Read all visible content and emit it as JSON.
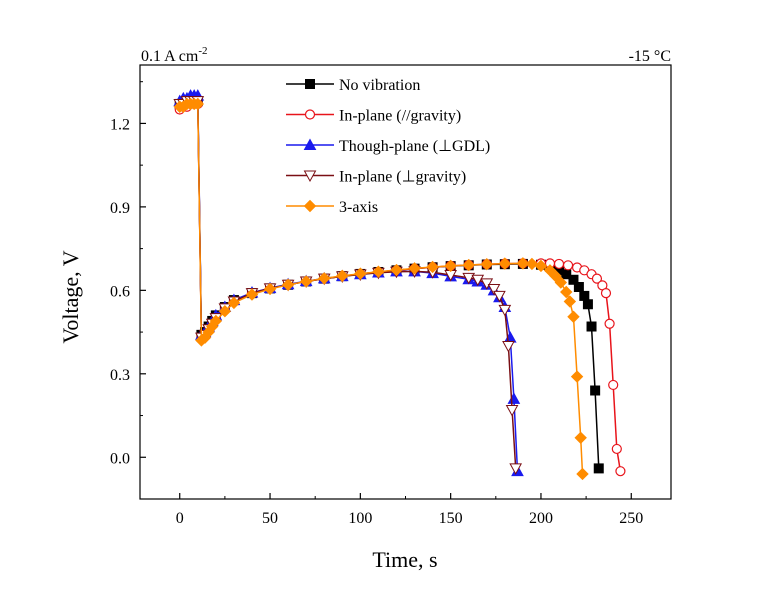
{
  "chart_data": {
    "type": "line",
    "title": "",
    "annotations": {
      "current_density": "0.1 A cm",
      "current_density_exp": "-2",
      "temperature": "-15 °C"
    },
    "xlabel": "Time, s",
    "ylabel": "Voltage, V",
    "xlim": [
      -22,
      272
    ],
    "ylim": [
      -0.15,
      1.41
    ],
    "xticks": [
      0,
      50,
      100,
      150,
      200,
      250
    ],
    "xtick_labels": [
      "0",
      "50",
      "100",
      "150",
      "200",
      "250"
    ],
    "yticks": [
      0.0,
      0.3,
      0.6,
      0.9,
      1.2
    ],
    "ytick_labels": [
      "0.0",
      "0.3",
      "0.6",
      "0.9",
      "1.2"
    ],
    "legend_position": "top-center",
    "series": [
      {
        "name": "No vibration",
        "color": "#000000",
        "marker": "square-filled",
        "points": [
          [
            0,
            1.27
          ],
          [
            2,
            1.27
          ],
          [
            4,
            1.28
          ],
          [
            6,
            1.28
          ],
          [
            8,
            1.28
          ],
          [
            10,
            1.28
          ],
          [
            12,
            0.44
          ],
          [
            14,
            0.45
          ],
          [
            16,
            0.47
          ],
          [
            18,
            0.49
          ],
          [
            20,
            0.51
          ],
          [
            25,
            0.54
          ],
          [
            30,
            0.565
          ],
          [
            40,
            0.59
          ],
          [
            50,
            0.607
          ],
          [
            60,
            0.62
          ],
          [
            70,
            0.632
          ],
          [
            80,
            0.642
          ],
          [
            90,
            0.651
          ],
          [
            100,
            0.659
          ],
          [
            110,
            0.666
          ],
          [
            120,
            0.672
          ],
          [
            130,
            0.678
          ],
          [
            140,
            0.683
          ],
          [
            150,
            0.687
          ],
          [
            160,
            0.69
          ],
          [
            170,
            0.693
          ],
          [
            180,
            0.694
          ],
          [
            190,
            0.695
          ],
          [
            200,
            0.692
          ],
          [
            205,
            0.685
          ],
          [
            210,
            0.672
          ],
          [
            214,
            0.658
          ],
          [
            218,
            0.638
          ],
          [
            221,
            0.612
          ],
          [
            224,
            0.58
          ],
          [
            226,
            0.55
          ],
          [
            228,
            0.47
          ],
          [
            230,
            0.24
          ],
          [
            232,
            -0.04
          ]
        ]
      },
      {
        "name": "In-plane (//gravity)",
        "color": "#e8141b",
        "marker": "circle-open",
        "points": [
          [
            0,
            1.25
          ],
          [
            2,
            1.26
          ],
          [
            4,
            1.26
          ],
          [
            6,
            1.27
          ],
          [
            8,
            1.27
          ],
          [
            10,
            1.27
          ],
          [
            12,
            0.43
          ],
          [
            14,
            0.44
          ],
          [
            16,
            0.46
          ],
          [
            18,
            0.48
          ],
          [
            20,
            0.5
          ],
          [
            25,
            0.53
          ],
          [
            30,
            0.56
          ],
          [
            40,
            0.59
          ],
          [
            50,
            0.607
          ],
          [
            60,
            0.62
          ],
          [
            70,
            0.632
          ],
          [
            80,
            0.642
          ],
          [
            90,
            0.651
          ],
          [
            100,
            0.659
          ],
          [
            110,
            0.666
          ],
          [
            120,
            0.672
          ],
          [
            130,
            0.678
          ],
          [
            140,
            0.683
          ],
          [
            150,
            0.688
          ],
          [
            160,
            0.691
          ],
          [
            170,
            0.694
          ],
          [
            180,
            0.696
          ],
          [
            190,
            0.697
          ],
          [
            200,
            0.697
          ],
          [
            205,
            0.697
          ],
          [
            210,
            0.695
          ],
          [
            215,
            0.69
          ],
          [
            220,
            0.682
          ],
          [
            224,
            0.672
          ],
          [
            228,
            0.658
          ],
          [
            231,
            0.642
          ],
          [
            234,
            0.618
          ],
          [
            236,
            0.59
          ],
          [
            238,
            0.48
          ],
          [
            240,
            0.26
          ],
          [
            242,
            0.03
          ],
          [
            244,
            -0.05
          ]
        ]
      },
      {
        "name": "Though-plane (⊥GDL)",
        "color": "#1a1aee",
        "marker": "triangle-up-filled",
        "points": [
          [
            0,
            1.28
          ],
          [
            2,
            1.29
          ],
          [
            4,
            1.29
          ],
          [
            6,
            1.3
          ],
          [
            8,
            1.3
          ],
          [
            10,
            1.3
          ],
          [
            12,
            0.44
          ],
          [
            14,
            0.45
          ],
          [
            16,
            0.47
          ],
          [
            18,
            0.49
          ],
          [
            20,
            0.51
          ],
          [
            25,
            0.54
          ],
          [
            30,
            0.565
          ],
          [
            40,
            0.592
          ],
          [
            50,
            0.608
          ],
          [
            60,
            0.622
          ],
          [
            70,
            0.633
          ],
          [
            80,
            0.643
          ],
          [
            90,
            0.651
          ],
          [
            100,
            0.658
          ],
          [
            110,
            0.664
          ],
          [
            120,
            0.668
          ],
          [
            130,
            0.668
          ],
          [
            140,
            0.662
          ],
          [
            150,
            0.65
          ],
          [
            160,
            0.64
          ],
          [
            165,
            0.632
          ],
          [
            170,
            0.62
          ],
          [
            174,
            0.6
          ],
          [
            177,
            0.575
          ],
          [
            180,
            0.54
          ],
          [
            183,
            0.43
          ],
          [
            185,
            0.21
          ],
          [
            187,
            -0.05
          ]
        ]
      },
      {
        "name": "In-plane (⊥gravity)",
        "color": "#7a0f14",
        "marker": "triangle-down-open",
        "points": [
          [
            0,
            1.27
          ],
          [
            2,
            1.27
          ],
          [
            4,
            1.28
          ],
          [
            6,
            1.28
          ],
          [
            8,
            1.28
          ],
          [
            10,
            1.28
          ],
          [
            12,
            0.43
          ],
          [
            14,
            0.44
          ],
          [
            16,
            0.46
          ],
          [
            18,
            0.48
          ],
          [
            20,
            0.5
          ],
          [
            25,
            0.535
          ],
          [
            30,
            0.56
          ],
          [
            40,
            0.59
          ],
          [
            50,
            0.607
          ],
          [
            60,
            0.62
          ],
          [
            70,
            0.632
          ],
          [
            80,
            0.642
          ],
          [
            90,
            0.65
          ],
          [
            100,
            0.657
          ],
          [
            110,
            0.663
          ],
          [
            120,
            0.667
          ],
          [
            130,
            0.668
          ],
          [
            140,
            0.665
          ],
          [
            150,
            0.655
          ],
          [
            160,
            0.645
          ],
          [
            165,
            0.638
          ],
          [
            170,
            0.625
          ],
          [
            174,
            0.605
          ],
          [
            177,
            0.58
          ],
          [
            180,
            0.53
          ],
          [
            182,
            0.4
          ],
          [
            184,
            0.17
          ],
          [
            186,
            -0.04
          ]
        ]
      },
      {
        "name": "3-axis",
        "color": "#ff8c00",
        "marker": "diamond-filled",
        "points": [
          [
            0,
            1.26
          ],
          [
            2,
            1.26
          ],
          [
            4,
            1.27
          ],
          [
            6,
            1.27
          ],
          [
            8,
            1.27
          ],
          [
            10,
            1.27
          ],
          [
            12,
            0.42
          ],
          [
            14,
            0.43
          ],
          [
            16,
            0.45
          ],
          [
            18,
            0.47
          ],
          [
            20,
            0.49
          ],
          [
            25,
            0.525
          ],
          [
            30,
            0.555
          ],
          [
            40,
            0.585
          ],
          [
            50,
            0.605
          ],
          [
            60,
            0.62
          ],
          [
            70,
            0.632
          ],
          [
            80,
            0.643
          ],
          [
            90,
            0.652
          ],
          [
            100,
            0.66
          ],
          [
            110,
            0.667
          ],
          [
            120,
            0.673
          ],
          [
            130,
            0.679
          ],
          [
            140,
            0.684
          ],
          [
            150,
            0.688
          ],
          [
            160,
            0.691
          ],
          [
            170,
            0.694
          ],
          [
            180,
            0.696
          ],
          [
            190,
            0.697
          ],
          [
            195,
            0.695
          ],
          [
            200,
            0.688
          ],
          [
            205,
            0.672
          ],
          [
            208,
            0.652
          ],
          [
            211,
            0.628
          ],
          [
            214,
            0.594
          ],
          [
            216,
            0.56
          ],
          [
            218,
            0.505
          ],
          [
            220,
            0.29
          ],
          [
            222,
            0.07
          ],
          [
            223,
            -0.06
          ]
        ]
      }
    ]
  }
}
